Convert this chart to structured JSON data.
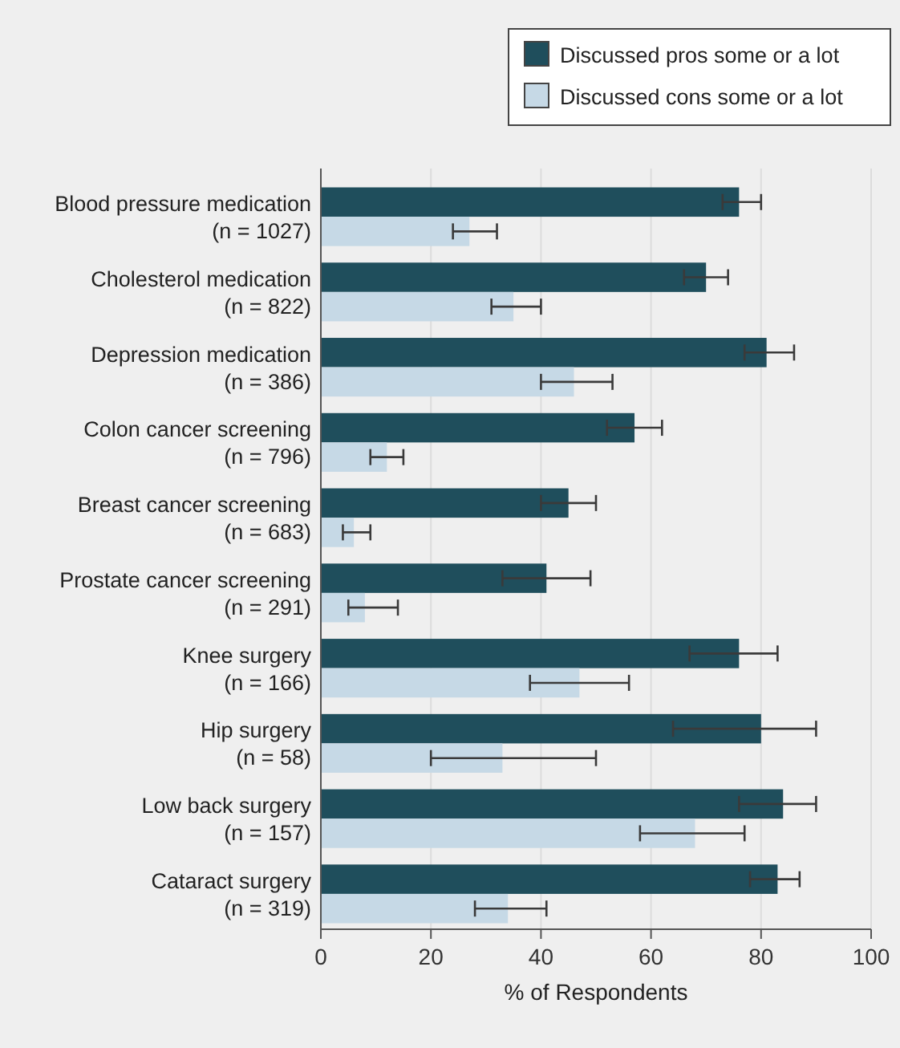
{
  "chart_data": {
    "type": "bar",
    "orientation": "horizontal",
    "xlabel": "% of Respondents",
    "categories": [
      "Blood pressure medication\n(n = 1027)",
      "Cholesterol medication\n(n = 822)",
      "Depression medication\n(n = 386)",
      "Colon cancer screening\n(n = 796)",
      "Breast cancer screening\n(n = 683)",
      "Prostate cancer screening\n(n = 291)",
      "Knee surgery\n(n = 166)",
      "Hip surgery\n(n = 58)",
      "Low back surgery\n(n = 157)",
      "Cataract surgery\n(n = 319)"
    ],
    "series": [
      {
        "name": "Discussed pros some or a lot",
        "color": "#1f4e5c",
        "values": [
          76,
          70,
          81,
          57,
          45,
          41,
          76,
          80,
          84,
          83
        ],
        "errors": [
          [
            73,
            80
          ],
          [
            66,
            74
          ],
          [
            77,
            86
          ],
          [
            52,
            62
          ],
          [
            40,
            50
          ],
          [
            33,
            49
          ],
          [
            67,
            83
          ],
          [
            64,
            90
          ],
          [
            76,
            90
          ],
          [
            78,
            87
          ]
        ]
      },
      {
        "name": "Discussed cons some or a lot",
        "color": "#c6d9e6",
        "values": [
          27,
          35,
          46,
          12,
          6,
          8,
          47,
          33,
          68,
          34
        ],
        "errors": [
          [
            24,
            32
          ],
          [
            31,
            40
          ],
          [
            40,
            53
          ],
          [
            9,
            15
          ],
          [
            4,
            9
          ],
          [
            5,
            14
          ],
          [
            38,
            56
          ],
          [
            20,
            50
          ],
          [
            58,
            77
          ],
          [
            28,
            41
          ]
        ]
      }
    ],
    "xlim": [
      0,
      100
    ],
    "xticks": [
      0,
      20,
      40,
      60,
      80,
      100
    ],
    "grid": "x",
    "legend": "top right"
  }
}
